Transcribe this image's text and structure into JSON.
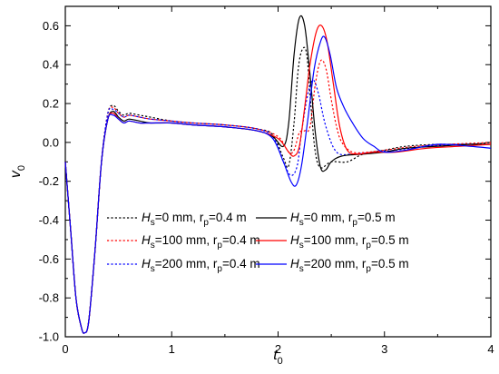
{
  "chart_data": {
    "type": "line",
    "xlabel": {
      "main": "t",
      "sub": "0"
    },
    "ylabel": {
      "main": "v",
      "sub": "0"
    },
    "xlim": [
      0,
      4
    ],
    "ylim": [
      -1.0,
      0.7
    ],
    "xticks": [
      0,
      1,
      2,
      3,
      4
    ],
    "xtick_labels": [
      "0",
      "1",
      "2",
      "3",
      "4"
    ],
    "yticks": [
      -1.0,
      -0.8,
      -0.6,
      -0.4,
      -0.2,
      0.0,
      0.2,
      0.4,
      0.6
    ],
    "ytick_labels": [
      "-1.0",
      "-0.8",
      "-0.6",
      "-0.4",
      "-0.2",
      "0.0",
      "0.2",
      "0.4",
      "0.6"
    ],
    "grid": false,
    "legend_position": "bottom-left",
    "series": [
      {
        "name": "Hs=0 mm, rp=0.4 m",
        "legend": {
          "a": "H",
          "sub1": "s",
          "b": "=0 mm,    r",
          "sub2": "p",
          "c": "=0.4 m"
        },
        "color": "#000000",
        "dash": "dot",
        "points": [
          [
            0,
            -0.1
          ],
          [
            0.05,
            -0.45
          ],
          [
            0.1,
            -0.8
          ],
          [
            0.15,
            -0.95
          ],
          [
            0.18,
            -0.98
          ],
          [
            0.22,
            -0.92
          ],
          [
            0.28,
            -0.55
          ],
          [
            0.34,
            -0.1
          ],
          [
            0.4,
            0.15
          ],
          [
            0.45,
            0.19
          ],
          [
            0.5,
            0.16
          ],
          [
            0.55,
            0.14
          ],
          [
            0.6,
            0.15
          ],
          [
            0.7,
            0.14
          ],
          [
            0.8,
            0.13
          ],
          [
            1.0,
            0.11
          ],
          [
            1.2,
            0.1
          ],
          [
            1.5,
            0.09
          ],
          [
            1.8,
            0.07
          ],
          [
            1.95,
            0.04
          ],
          [
            2.05,
            -0.08
          ],
          [
            2.1,
            -0.12
          ],
          [
            2.15,
            0.1
          ],
          [
            2.19,
            0.38
          ],
          [
            2.23,
            0.48
          ],
          [
            2.27,
            0.45
          ],
          [
            2.31,
            0.18
          ],
          [
            2.35,
            -0.05
          ],
          [
            2.4,
            -0.13
          ],
          [
            2.5,
            -0.1
          ],
          [
            2.65,
            -0.1
          ],
          [
            2.8,
            -0.06
          ],
          [
            3.0,
            -0.04
          ],
          [
            3.2,
            -0.02
          ],
          [
            3.5,
            -0.01
          ],
          [
            3.8,
            -0.01
          ],
          [
            4.0,
            0.0
          ]
        ]
      },
      {
        "name": "Hs=100 mm, rp=0.4 m",
        "legend": {
          "a": "H",
          "sub1": "s",
          "b": "=100 mm, r",
          "sub2": "p",
          "c": "=0.4 m"
        },
        "color": "#ff0000",
        "dash": "dot",
        "points": [
          [
            0,
            -0.1
          ],
          [
            0.05,
            -0.45
          ],
          [
            0.1,
            -0.8
          ],
          [
            0.15,
            -0.95
          ],
          [
            0.18,
            -0.98
          ],
          [
            0.22,
            -0.92
          ],
          [
            0.28,
            -0.55
          ],
          [
            0.34,
            -0.1
          ],
          [
            0.4,
            0.15
          ],
          [
            0.45,
            0.18
          ],
          [
            0.5,
            0.15
          ],
          [
            0.55,
            0.13
          ],
          [
            0.6,
            0.14
          ],
          [
            0.7,
            0.13
          ],
          [
            0.8,
            0.12
          ],
          [
            1.0,
            0.11
          ],
          [
            1.2,
            0.1
          ],
          [
            1.5,
            0.09
          ],
          [
            1.8,
            0.07
          ],
          [
            2.0,
            0.03
          ],
          [
            2.1,
            -0.05
          ],
          [
            2.15,
            -0.04
          ],
          [
            2.2,
            0.05
          ],
          [
            2.25,
            0.06
          ],
          [
            2.3,
            0.08
          ],
          [
            2.35,
            0.3
          ],
          [
            2.4,
            0.42
          ],
          [
            2.45,
            0.38
          ],
          [
            2.5,
            0.22
          ],
          [
            2.55,
            0.08
          ],
          [
            2.6,
            0.0
          ],
          [
            2.7,
            -0.05
          ],
          [
            2.85,
            -0.05
          ],
          [
            3.0,
            -0.04
          ],
          [
            3.3,
            -0.02
          ],
          [
            3.6,
            -0.01
          ],
          [
            4.0,
            0.0
          ]
        ]
      },
      {
        "name": "Hs=200 mm, rp=0.4 m",
        "legend": {
          "a": "H",
          "sub1": "s",
          "b": "=200 mm, r",
          "sub2": "p",
          "c": "=0.4 m"
        },
        "color": "#0000ff",
        "dash": "dot",
        "points": [
          [
            0,
            -0.1
          ],
          [
            0.05,
            -0.45
          ],
          [
            0.1,
            -0.8
          ],
          [
            0.15,
            -0.95
          ],
          [
            0.18,
            -0.98
          ],
          [
            0.22,
            -0.92
          ],
          [
            0.28,
            -0.55
          ],
          [
            0.34,
            -0.1
          ],
          [
            0.4,
            0.15
          ],
          [
            0.45,
            0.17
          ],
          [
            0.5,
            0.15
          ],
          [
            0.55,
            0.13
          ],
          [
            0.6,
            0.14
          ],
          [
            0.7,
            0.13
          ],
          [
            0.8,
            0.12
          ],
          [
            1.0,
            0.11
          ],
          [
            1.2,
            0.1
          ],
          [
            1.5,
            0.09
          ],
          [
            1.8,
            0.07
          ],
          [
            1.95,
            0.03
          ],
          [
            2.05,
            -0.1
          ],
          [
            2.12,
            -0.17
          ],
          [
            2.18,
            -0.12
          ],
          [
            2.22,
            0.05
          ],
          [
            2.28,
            0.25
          ],
          [
            2.33,
            0.32
          ],
          [
            2.38,
            0.25
          ],
          [
            2.45,
            0.08
          ],
          [
            2.55,
            -0.05
          ],
          [
            2.7,
            -0.06
          ],
          [
            2.9,
            -0.05
          ],
          [
            3.1,
            -0.04
          ],
          [
            3.4,
            -0.02
          ],
          [
            3.7,
            -0.01
          ],
          [
            4.0,
            -0.01
          ]
        ]
      },
      {
        "name": "Hs=0 mm, rp=0.5 m",
        "legend": {
          "a": "H",
          "sub1": "s",
          "b": "=0 mm,    r",
          "sub2": "p",
          "c": "=0.5 m"
        },
        "color": "#000000",
        "dash": "solid",
        "points": [
          [
            0,
            -0.1
          ],
          [
            0.05,
            -0.45
          ],
          [
            0.1,
            -0.8
          ],
          [
            0.15,
            -0.95
          ],
          [
            0.18,
            -0.98
          ],
          [
            0.22,
            -0.92
          ],
          [
            0.28,
            -0.55
          ],
          [
            0.34,
            -0.1
          ],
          [
            0.4,
            0.12
          ],
          [
            0.45,
            0.16
          ],
          [
            0.5,
            0.13
          ],
          [
            0.55,
            0.11
          ],
          [
            0.6,
            0.12
          ],
          [
            0.7,
            0.11
          ],
          [
            0.8,
            0.1
          ],
          [
            1.0,
            0.1
          ],
          [
            1.2,
            0.09
          ],
          [
            1.5,
            0.08
          ],
          [
            1.8,
            0.06
          ],
          [
            1.95,
            0.03
          ],
          [
            2.05,
            -0.02
          ],
          [
            2.1,
            0.1
          ],
          [
            2.15,
            0.45
          ],
          [
            2.2,
            0.64
          ],
          [
            2.25,
            0.6
          ],
          [
            2.3,
            0.35
          ],
          [
            2.35,
            0.05
          ],
          [
            2.4,
            -0.13
          ],
          [
            2.45,
            -0.14
          ],
          [
            2.5,
            -0.1
          ],
          [
            2.6,
            -0.07
          ],
          [
            2.8,
            -0.06
          ],
          [
            3.0,
            -0.05
          ],
          [
            3.2,
            -0.03
          ],
          [
            3.5,
            -0.02
          ],
          [
            3.8,
            -0.01
          ],
          [
            4.0,
            -0.01
          ]
        ]
      },
      {
        "name": "Hs=100 mm, rp=0.5 m",
        "legend": {
          "a": "H",
          "sub1": "s",
          "b": "=100 mm, r",
          "sub2": "p",
          "c": "=0.5 m"
        },
        "color": "#ff0000",
        "dash": "solid",
        "points": [
          [
            0,
            -0.1
          ],
          [
            0.05,
            -0.45
          ],
          [
            0.1,
            -0.8
          ],
          [
            0.15,
            -0.95
          ],
          [
            0.18,
            -0.98
          ],
          [
            0.22,
            -0.92
          ],
          [
            0.28,
            -0.55
          ],
          [
            0.34,
            -0.1
          ],
          [
            0.4,
            0.12
          ],
          [
            0.45,
            0.15
          ],
          [
            0.5,
            0.12
          ],
          [
            0.55,
            0.1
          ],
          [
            0.6,
            0.11
          ],
          [
            0.7,
            0.1
          ],
          [
            0.8,
            0.1
          ],
          [
            1.0,
            0.1
          ],
          [
            1.2,
            0.09
          ],
          [
            1.5,
            0.08
          ],
          [
            1.8,
            0.06
          ],
          [
            2.0,
            0.02
          ],
          [
            2.1,
            -0.05
          ],
          [
            2.15,
            -0.07
          ],
          [
            2.2,
            -0.02
          ],
          [
            2.25,
            0.18
          ],
          [
            2.3,
            0.4
          ],
          [
            2.36,
            0.57
          ],
          [
            2.41,
            0.6
          ],
          [
            2.46,
            0.52
          ],
          [
            2.52,
            0.3
          ],
          [
            2.58,
            0.08
          ],
          [
            2.65,
            -0.04
          ],
          [
            2.75,
            -0.06
          ],
          [
            2.9,
            -0.05
          ],
          [
            3.1,
            -0.05
          ],
          [
            3.4,
            -0.03
          ],
          [
            3.7,
            -0.02
          ],
          [
            4.0,
            -0.01
          ]
        ]
      },
      {
        "name": "Hs=200 mm, rp=0.5 m",
        "legend": {
          "a": "H",
          "sub1": "s",
          "b": "=200 mm, r",
          "sub2": "p",
          "c": "=0.5 m"
        },
        "color": "#0000ff",
        "dash": "solid",
        "points": [
          [
            0,
            -0.1
          ],
          [
            0.05,
            -0.45
          ],
          [
            0.1,
            -0.8
          ],
          [
            0.15,
            -0.95
          ],
          [
            0.18,
            -0.98
          ],
          [
            0.22,
            -0.92
          ],
          [
            0.28,
            -0.55
          ],
          [
            0.34,
            -0.1
          ],
          [
            0.4,
            0.12
          ],
          [
            0.45,
            0.14
          ],
          [
            0.5,
            0.12
          ],
          [
            0.55,
            0.1
          ],
          [
            0.6,
            0.11
          ],
          [
            0.7,
            0.1
          ],
          [
            0.8,
            0.1
          ],
          [
            1.0,
            0.1
          ],
          [
            1.2,
            0.09
          ],
          [
            1.5,
            0.08
          ],
          [
            1.8,
            0.06
          ],
          [
            1.95,
            0.02
          ],
          [
            2.05,
            -0.1
          ],
          [
            2.12,
            -0.2
          ],
          [
            2.17,
            -0.22
          ],
          [
            2.22,
            -0.12
          ],
          [
            2.28,
            0.12
          ],
          [
            2.34,
            0.38
          ],
          [
            2.4,
            0.52
          ],
          [
            2.44,
            0.54
          ],
          [
            2.49,
            0.45
          ],
          [
            2.55,
            0.28
          ],
          [
            2.62,
            0.18
          ],
          [
            2.7,
            0.1
          ],
          [
            2.8,
            0.02
          ],
          [
            2.9,
            -0.02
          ],
          [
            3.0,
            -0.05
          ],
          [
            3.2,
            -0.04
          ],
          [
            3.5,
            -0.01
          ],
          [
            3.8,
            -0.02
          ],
          [
            4.0,
            -0.03
          ]
        ]
      }
    ]
  }
}
